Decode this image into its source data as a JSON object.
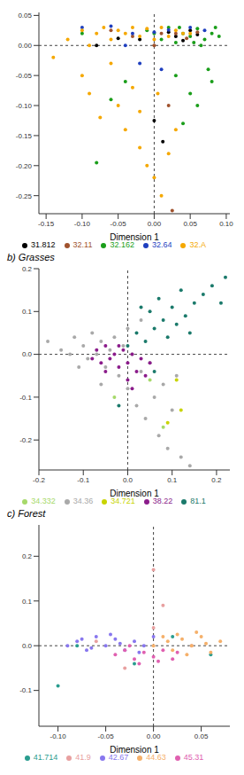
{
  "chart_data": [
    {
      "type": "scatter",
      "x_label": "Dimension 1",
      "xlim": [
        -0.16,
        0.105
      ],
      "xticks": [
        -0.15,
        {
          "value": -0.1,
          "label": "-0.10"
        },
        -0.05,
        {
          "value": 0,
          "label": "0.00"
        },
        0.05,
        {
          "value": 0.1,
          "label": "0.10"
        }
      ],
      "ylim": [
        -0.28,
        0.055
      ],
      "yticks": [
        -0.25,
        {
          "value": -0.2,
          "label": "-0.20"
        },
        -0.15,
        {
          "value": -0.1,
          "label": "-0.10"
        },
        -0.05,
        {
          "value": 0,
          "label": "0.00"
        },
        0.05
      ],
      "series": [
        {
          "name": "31.812",
          "color": "#000000",
          "points": [
            [
              -0.08,
              0.0
            ],
            [
              -0.05,
              0.012
            ],
            [
              -0.02,
              0.01
            ],
            [
              0.02,
              0.022
            ],
            [
              0.03,
              0.015
            ],
            [
              0.04,
              0.008
            ],
            [
              0.05,
              0.025
            ],
            [
              0.0,
              -0.125
            ],
            [
              0.012,
              -0.16
            ],
            [
              0.06,
              0.018
            ]
          ]
        },
        {
          "name": "32.11",
          "color": "#a0522d",
          "points": [
            [
              -0.03,
              0.015
            ],
            [
              0.0,
              0.0
            ],
            [
              0.01,
              0.02
            ],
            [
              0.03,
              0.02
            ],
            [
              0.06,
              0.022
            ],
            [
              0.02,
              -0.1
            ],
            [
              0.025,
              -0.275
            ],
            [
              -0.06,
              0.025
            ],
            [
              0.045,
              0.012
            ]
          ]
        },
        {
          "name": "32.162",
          "color": "#1a9e1a",
          "points": [
            [
              0.0,
              0.02
            ],
            [
              0.01,
              0.01
            ],
            [
              0.02,
              0.03
            ],
            [
              0.03,
              0.005
            ],
            [
              0.04,
              0.02
            ],
            [
              0.05,
              0.015
            ],
            [
              0.06,
              0.028
            ],
            [
              0.07,
              0.01
            ],
            [
              0.08,
              0.02
            ],
            [
              0.09,
              0.015
            ],
            [
              0.065,
              0.0
            ],
            [
              -0.01,
              0.025
            ],
            [
              0.035,
              0.03
            ],
            [
              0.055,
              0.005
            ],
            [
              0.075,
              -0.04
            ],
            [
              0.08,
              -0.06
            ],
            [
              0.06,
              -0.1
            ],
            [
              0.05,
              -0.08
            ],
            [
              0.04,
              -0.13
            ],
            [
              0.03,
              -0.05
            ],
            [
              -0.04,
              -0.06
            ],
            [
              -0.06,
              -0.09
            ],
            [
              -0.08,
              -0.195
            ],
            [
              0.085,
              0.03
            ],
            [
              -0.1,
              0.02
            ]
          ]
        },
        {
          "name": "32.64",
          "color": "#1f3fbf",
          "points": [
            [
              -0.1,
              0.03
            ],
            [
              -0.06,
              0.032
            ],
            [
              -0.03,
              0.02
            ],
            [
              0.0,
              0.022
            ],
            [
              0.02,
              0.026
            ],
            [
              0.05,
              0.03
            ],
            [
              -0.04,
              0.0
            ],
            [
              -0.02,
              -0.03
            ],
            [
              0.01,
              -0.04
            ],
            [
              0.07,
              0.025
            ]
          ]
        },
        {
          "name": "32.A",
          "color": "#f5a800",
          "points": [
            [
              -0.14,
              -0.02
            ],
            [
              -0.12,
              0.01
            ],
            [
              -0.1,
              0.025
            ],
            [
              -0.09,
              0.0
            ],
            [
              -0.08,
              0.02
            ],
            [
              -0.07,
              0.03
            ],
            [
              -0.06,
              0.01
            ],
            [
              -0.05,
              0.025
            ],
            [
              -0.04,
              0.02
            ],
            [
              -0.03,
              0.03
            ],
            [
              -0.02,
              0.015
            ],
            [
              -0.01,
              0.028
            ],
            [
              0.0,
              0.01
            ],
            [
              0.01,
              0.03
            ],
            [
              0.02,
              0.015
            ],
            [
              0.03,
              0.025
            ],
            [
              0.04,
              0.02
            ],
            [
              0.05,
              0.02
            ],
            [
              -0.1,
              -0.05
            ],
            [
              -0.09,
              -0.08
            ],
            [
              -0.075,
              -0.12
            ],
            [
              -0.06,
              -0.03
            ],
            [
              -0.05,
              -0.1
            ],
            [
              -0.04,
              -0.14
            ],
            [
              -0.03,
              -0.07
            ],
            [
              -0.02,
              -0.17
            ],
            [
              -0.01,
              -0.2
            ],
            [
              0.0,
              -0.22
            ],
            [
              0.01,
              -0.25
            ],
            [
              0.02,
              -0.18
            ],
            [
              0.03,
              -0.14
            ],
            [
              -0.02,
              -0.11
            ],
            [
              0.005,
              -0.08
            ]
          ]
        }
      ]
    },
    {
      "type": "scatter",
      "title": "b) Grasses",
      "x_label": "Dimension 1",
      "xlim": [
        -0.2,
        0.23
      ],
      "xticks": [
        -0.2,
        -0.1,
        {
          "value": 0,
          "label": "0.0"
        },
        0.1,
        0.2
      ],
      "ylim": [
        -0.27,
        0.2
      ],
      "yticks": [
        -0.2,
        -0.1,
        {
          "value": 0,
          "label": "0.0"
        },
        0.1,
        0.2
      ],
      "series": [
        {
          "name": "34.332",
          "color": "#a6d96a",
          "points": [
            [
              -0.03,
              -0.1
            ],
            [
              0.08,
              -0.17
            ],
            [
              0.05,
              -0.06
            ]
          ]
        },
        {
          "name": "34.36",
          "color": "#a9a9a9",
          "points": [
            [
              -0.18,
              0.03
            ],
            [
              -0.15,
              0.01
            ],
            [
              -0.12,
              0.04
            ],
            [
              -0.1,
              0.02
            ],
            [
              -0.09,
              -0.01
            ],
            [
              -0.08,
              0.05
            ],
            [
              -0.07,
              0.0
            ],
            [
              -0.06,
              0.03
            ],
            [
              -0.05,
              -0.03
            ],
            [
              -0.04,
              0.01
            ],
            [
              -0.03,
              0.04
            ],
            [
              -0.02,
              -0.05
            ],
            [
              -0.01,
              0.02
            ],
            [
              0.0,
              -0.08
            ],
            [
              0.01,
              0.0
            ],
            [
              0.02,
              -0.12
            ],
            [
              0.03,
              -0.04
            ],
            [
              0.04,
              -0.15
            ],
            [
              0.05,
              -0.02
            ],
            [
              0.06,
              -0.1
            ],
            [
              0.07,
              -0.19
            ],
            [
              0.08,
              -0.07
            ],
            [
              0.09,
              -0.22
            ],
            [
              0.1,
              -0.13
            ],
            [
              0.12,
              -0.24
            ],
            [
              0.14,
              -0.26
            ],
            [
              -0.11,
              -0.03
            ],
            [
              -0.06,
              -0.07
            ],
            [
              0.0,
              0.06
            ],
            [
              -0.13,
              0.0
            ],
            [
              0.03,
              0.08
            ],
            [
              0.11,
              -0.05
            ]
          ]
        },
        {
          "name": "34.721",
          "color": "#c8d400",
          "points": [
            [
              0.11,
              -0.06
            ],
            [
              0.12,
              -0.13
            ],
            [
              0.09,
              -0.16
            ]
          ]
        },
        {
          "name": "38.22",
          "color": "#8b1c8b",
          "points": [
            [
              -0.07,
              0.01
            ],
            [
              -0.06,
              -0.02
            ],
            [
              -0.05,
              0.02
            ],
            [
              -0.04,
              -0.01
            ],
            [
              -0.03,
              0.0
            ],
            [
              -0.02,
              -0.03
            ],
            [
              -0.01,
              0.01
            ],
            [
              0.0,
              -0.02
            ],
            [
              0.01,
              0.0
            ],
            [
              0.02,
              -0.04
            ],
            [
              0.03,
              -0.01
            ],
            [
              0.04,
              -0.05
            ],
            [
              -0.05,
              -0.04
            ],
            [
              -0.02,
              0.02
            ],
            [
              0.0,
              -0.06
            ],
            [
              0.05,
              -0.02
            ],
            [
              -0.08,
              -0.01
            ],
            [
              0.01,
              -0.08
            ]
          ]
        },
        {
          "name": "81.1",
          "color": "#1b7a6b",
          "points": [
            [
              0.02,
              0.05
            ],
            [
              0.04,
              0.03
            ],
            [
              0.05,
              0.1
            ],
            [
              0.06,
              0.06
            ],
            [
              0.07,
              0.13
            ],
            [
              0.08,
              0.08
            ],
            [
              0.09,
              0.04
            ],
            [
              0.1,
              0.11
            ],
            [
              0.11,
              0.07
            ],
            [
              0.12,
              0.15
            ],
            [
              0.13,
              0.09
            ],
            [
              0.15,
              0.12
            ],
            [
              0.17,
              0.14
            ],
            [
              0.19,
              0.16
            ],
            [
              0.22,
              0.18
            ],
            [
              0.21,
              0.12
            ],
            [
              0.03,
              0.11
            ],
            [
              0.0,
              0.02
            ],
            [
              -0.02,
              -0.12
            ],
            [
              0.06,
              -0.04
            ],
            [
              0.14,
              0.05
            ]
          ]
        }
      ]
    },
    {
      "type": "scatter",
      "title": "c) Forest",
      "x_label": "Dimension 1",
      "xlim": [
        -0.12,
        0.08
      ],
      "xticks": [
        {
          "value": -0.1,
          "label": "-0.10"
        },
        -0.05,
        {
          "value": 0,
          "label": "0.00"
        },
        0.05
      ],
      "ylim": [
        -0.18,
        0.27
      ],
      "yticks": [
        -0.1,
        {
          "value": 0,
          "label": "0.0"
        },
        0.1,
        0.2
      ],
      "series": [
        {
          "name": "41.714",
          "color": "#2a9d8f",
          "points": [
            [
              -0.1,
              -0.09
            ],
            [
              -0.08,
              0.0
            ],
            [
              0.02,
              0.02
            ],
            [
              0.06,
              -0.02
            ],
            [
              -0.02,
              -0.04
            ]
          ]
        },
        {
          "name": "41.9",
          "color": "#e8a0a0",
          "points": [
            [
              -0.06,
              0.01
            ],
            [
              0.0,
              0.04
            ],
            [
              0.04,
              0.0
            ],
            [
              -0.03,
              -0.05
            ],
            [
              0.0,
              0.17
            ],
            [
              0.01,
              0.09
            ]
          ]
        },
        {
          "name": "42.67",
          "color": "#8877ee",
          "points": [
            [
              -0.09,
              0.0
            ],
            [
              -0.08,
              0.01
            ],
            [
              -0.07,
              -0.01
            ],
            [
              -0.06,
              0.02
            ],
            [
              -0.05,
              0.0
            ],
            [
              -0.04,
              0.015
            ],
            [
              -0.03,
              -0.01
            ],
            [
              -0.02,
              0.01
            ],
            [
              -0.01,
              0.0
            ],
            [
              0.0,
              0.02
            ],
            [
              -0.065,
              -0.005
            ],
            [
              -0.045,
              0.025
            ],
            [
              -0.035,
              0.005
            ],
            [
              -0.075,
              0.015
            ],
            [
              -0.015,
              -0.015
            ]
          ]
        },
        {
          "name": "44.63",
          "color": "#f5b06a",
          "points": [
            [
              0.0,
              0.0
            ],
            [
              0.01,
              0.02
            ],
            [
              0.02,
              -0.01
            ],
            [
              0.03,
              0.015
            ],
            [
              0.04,
              0.0
            ],
            [
              0.05,
              0.02
            ],
            [
              0.06,
              -0.015
            ],
            [
              0.035,
              -0.02
            ],
            [
              0.015,
              0.01
            ],
            [
              0.045,
              0.03
            ],
            [
              0.055,
              0.005
            ],
            [
              0.025,
              0.025
            ],
            [
              0.07,
              0.01
            ]
          ]
        },
        {
          "name": "45.31",
          "color": "#e060b0",
          "points": [
            [
              -0.04,
              -0.02
            ],
            [
              -0.03,
              -0.01
            ],
            [
              -0.02,
              -0.03
            ],
            [
              -0.01,
              -0.015
            ],
            [
              0.0,
              -0.025
            ],
            [
              0.01,
              -0.01
            ],
            [
              0.02,
              -0.03
            ],
            [
              -0.025,
              0.0
            ],
            [
              0.005,
              -0.035
            ],
            [
              -0.015,
              -0.04
            ],
            [
              0.025,
              -0.015
            ]
          ]
        }
      ]
    }
  ]
}
